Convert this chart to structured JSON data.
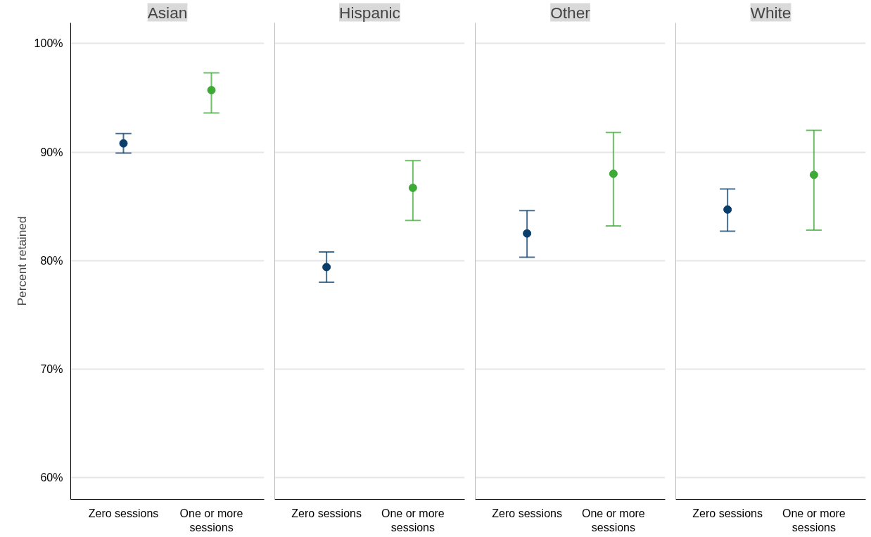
{
  "chart_data": [
    {
      "type": "scatter",
      "title": "Asian",
      "ylabel": "Percent retained",
      "categories": [
        "Zero sessions",
        "One or more sessions"
      ],
      "values": [
        90.8,
        95.7
      ],
      "errors": [
        [
          89.9,
          91.7
        ],
        [
          93.6,
          97.3
        ]
      ],
      "colors": [
        "#0b3d6b",
        "#3daa35"
      ],
      "ylim": [
        58,
        101.9
      ],
      "yticks": [
        {
          "value": 60,
          "label": "60%"
        },
        {
          "value": 70,
          "label": "70%"
        },
        {
          "value": 80,
          "label": "80%"
        },
        {
          "value": 90,
          "label": "90%"
        },
        {
          "value": 100,
          "label": "100%"
        }
      ],
      "grid": "y",
      "marker": "circle"
    },
    {
      "type": "scatter",
      "title": "Hispanic",
      "categories": [
        "Zero sessions",
        "One or more sessions"
      ],
      "values": [
        79.4,
        86.7
      ],
      "errors": [
        [
          78.0,
          80.8
        ],
        [
          83.7,
          89.2
        ]
      ],
      "colors": [
        "#0b3d6b",
        "#3daa35"
      ],
      "ylim": [
        58,
        101.9
      ],
      "yticks": [
        60,
        70,
        80,
        90,
        100
      ],
      "grid": "y",
      "marker": "circle",
      "tick_labels": "x"
    },
    {
      "type": "scatter",
      "title": "Other",
      "categories": [
        "Zero sessions",
        "One or more sessions"
      ],
      "values": [
        82.5,
        88.0
      ],
      "errors": [
        [
          80.3,
          84.6
        ],
        [
          83.2,
          91.8
        ]
      ],
      "colors": [
        "#0b3d6b",
        "#3daa35"
      ],
      "ylim": [
        58,
        101.9
      ],
      "yticks": [
        60,
        70,
        80,
        90,
        100
      ],
      "grid": "y",
      "marker": "circle",
      "tick_labels": "x"
    },
    {
      "type": "scatter",
      "title": "White",
      "categories": [
        "Zero sessions",
        "One or more sessions"
      ],
      "values": [
        84.7,
        87.9
      ],
      "errors": [
        [
          82.7,
          86.6
        ],
        [
          82.8,
          92.0
        ]
      ],
      "colors": [
        "#0b3d6b",
        "#3daa35"
      ],
      "ylim": [
        58,
        101.9
      ],
      "yticks": [
        60,
        70,
        80,
        90,
        100
      ],
      "grid": "y",
      "marker": "circle",
      "tick_labels": "x"
    }
  ]
}
